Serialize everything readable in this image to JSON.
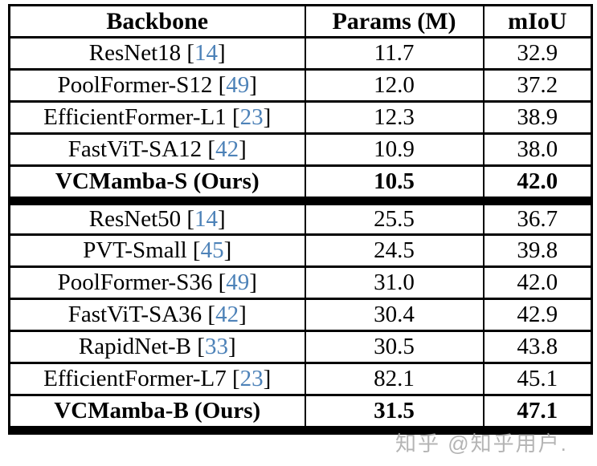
{
  "table": {
    "columns": [
      "Backbone",
      "Params (M)",
      "mIoU"
    ],
    "cite_color": "#4d82b8",
    "groups": [
      {
        "rows": [
          {
            "name": "ResNet18",
            "cite": "14",
            "params": "11.7",
            "miou": "32.9",
            "bold": false
          },
          {
            "name": "PoolFormer-S12",
            "cite": "49",
            "params": "12.0",
            "miou": "37.2",
            "bold": false
          },
          {
            "name": "EfficientFormer-L1",
            "cite": "23",
            "params": "12.3",
            "miou": "38.9",
            "bold": false
          },
          {
            "name": "FastViT-SA12",
            "cite": "42",
            "params": "10.9",
            "miou": "38.0",
            "bold": false
          },
          {
            "name": "VCMamba-S (Ours)",
            "cite": null,
            "params": "10.5",
            "miou": "42.0",
            "bold": true
          }
        ]
      },
      {
        "rows": [
          {
            "name": "ResNet50",
            "cite": "14",
            "params": "25.5",
            "miou": "36.7",
            "bold": false
          },
          {
            "name": "PVT-Small",
            "cite": "45",
            "params": "24.5",
            "miou": "39.8",
            "bold": false
          },
          {
            "name": "PoolFormer-S36",
            "cite": "49",
            "params": "31.0",
            "miou": "42.0",
            "bold": false
          },
          {
            "name": "FastViT-SA36",
            "cite": "42",
            "params": "30.4",
            "miou": "42.9",
            "bold": false
          },
          {
            "name": "RapidNet-B",
            "cite": "33",
            "params": "30.5",
            "miou": "43.8",
            "bold": false
          },
          {
            "name": "EfficientFormer-L7",
            "cite": "23",
            "params": "82.1",
            "miou": "45.1",
            "bold": false
          },
          {
            "name": "VCMamba-B (Ours)",
            "cite": null,
            "params": "31.5",
            "miou": "47.1",
            "bold": true
          }
        ]
      }
    ]
  },
  "watermark": {
    "text": "知乎 @知乎用户.",
    "color": "#a8a8a8"
  }
}
